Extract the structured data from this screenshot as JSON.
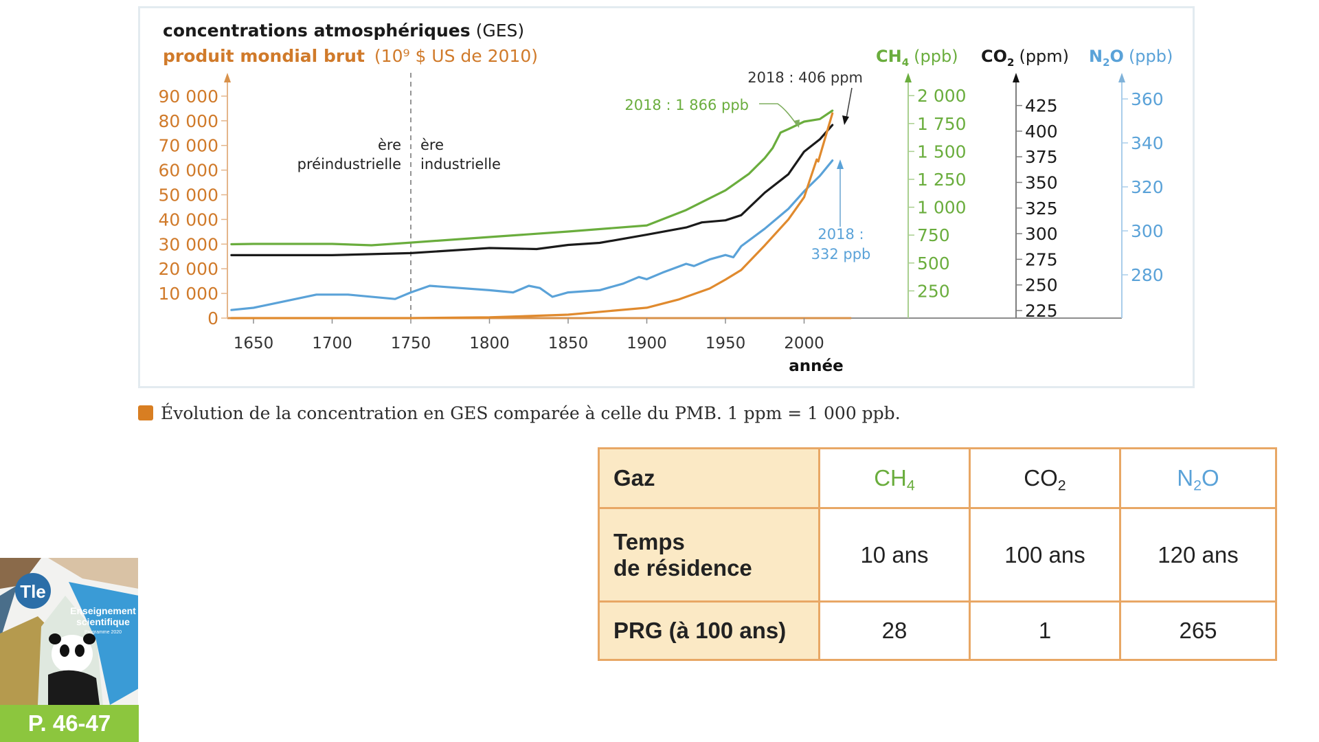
{
  "chart_data": {
    "type": "line",
    "title": "concentrations atmosphériques",
    "title_suffix": "(GES)",
    "subtitle": "produit mondial brut",
    "subtitle_unit": "(10⁹ $ US de 2010)",
    "xlabel": "année",
    "xlim": [
      1636,
      2030
    ],
    "x_ticks": [
      1650,
      1700,
      1750,
      1800,
      1850,
      1900,
      1950,
      2000
    ],
    "era_divider_year": 1750,
    "era_labels": {
      "left": [
        "ère",
        "préindustrielle"
      ],
      "right": [
        "ère",
        "industrielle"
      ]
    },
    "axes": {
      "gdp": {
        "label": "produit mondial brut",
        "ylim": [
          0,
          90000
        ],
        "ticks": [
          0,
          10000,
          20000,
          30000,
          40000,
          50000,
          60000,
          70000,
          80000,
          90000
        ],
        "tick_labels": [
          "0",
          "10 000",
          "20 000",
          "30 000",
          "40 000",
          "50 000",
          "60 000",
          "70 000",
          "80 000",
          "90 000"
        ],
        "color": "#d07a2a"
      },
      "ch4": {
        "label": "CH",
        "sub": "4",
        "unit": "(ppb)",
        "ylim": [
          0,
          2150
        ],
        "ticks": [
          250,
          500,
          750,
          1000,
          1250,
          1500,
          1750,
          2000
        ],
        "tick_labels": [
          "250",
          "500",
          "750",
          "1 000",
          "1 250",
          "1 500",
          "1 750",
          "2 000"
        ],
        "color": "#6aad3d"
      },
      "co2": {
        "label": "CO",
        "sub": "2",
        "unit": "(ppm)",
        "ylim": [
          200,
          460
        ],
        "ticks": [
          225,
          250,
          275,
          300,
          325,
          350,
          375,
          400,
          425
        ],
        "tick_labels": [
          "225",
          "250",
          "275",
          "300",
          "325",
          "350",
          "375",
          "400",
          "425"
        ],
        "color": "#1a1a1a"
      },
      "n2o": {
        "label": "N",
        "sub": "2",
        "label_end": "O",
        "unit": "(ppb)",
        "ylim": [
          260,
          370
        ],
        "ticks": [
          280,
          300,
          320,
          340,
          360
        ],
        "tick_labels": [
          "280",
          "300",
          "320",
          "340",
          "360"
        ],
        "color": "#5aa2d8"
      }
    },
    "series": [
      {
        "name": "CH4",
        "axis": "ch4",
        "color": "#6aad3d",
        "x": [
          1636,
          1650,
          1700,
          1725,
          1750,
          1800,
          1850,
          1900,
          1925,
          1950,
          1965,
          1975,
          1980,
          1985,
          1990,
          2000,
          2010,
          2018
        ],
        "y": [
          668,
          671,
          671,
          659,
          683,
          733,
          782,
          837,
          975,
          1151,
          1300,
          1441,
          1530,
          1669,
          1700,
          1767,
          1790,
          1866
        ]
      },
      {
        "name": "CO2",
        "axis": "co2",
        "color": "#1a1a1a",
        "x": [
          1636,
          1650,
          1700,
          1750,
          1800,
          1830,
          1850,
          1870,
          1900,
          1925,
          1935,
          1950,
          1960,
          1975,
          1990,
          2000,
          2010,
          2018
        ],
        "y": [
          279,
          279,
          279,
          281,
          286,
          285,
          289,
          291,
          299,
          306,
          311,
          313,
          318,
          340,
          358,
          380,
          392,
          406
        ]
      },
      {
        "name": "N2O",
        "axis": "n2o",
        "color": "#5aa2d8",
        "x": [
          1636,
          1650,
          1670,
          1690,
          1710,
          1740,
          1750,
          1762,
          1800,
          1815,
          1825,
          1832,
          1840,
          1850,
          1870,
          1885,
          1895,
          1900,
          1910,
          1925,
          1930,
          1940,
          1950,
          1955,
          1960,
          1975,
          1990,
          2000,
          2010,
          2018
        ],
        "y": [
          264,
          265,
          268,
          271,
          271,
          269,
          272,
          275,
          273,
          272,
          275,
          274,
          270,
          272,
          273,
          276,
          279,
          278,
          281,
          285,
          284,
          287,
          289,
          288,
          293,
          301,
          310,
          318,
          325,
          332
        ]
      },
      {
        "name": "PMB",
        "axis": "gdp",
        "color": "#e08a2e",
        "x": [
          1636,
          1750,
          1800,
          1850,
          1900,
          1920,
          1940,
          1950,
          1960,
          1975,
          1990,
          2000,
          2008,
          2009,
          2018
        ],
        "y": [
          0,
          0,
          300,
          1400,
          4200,
          7500,
          12000,
          15600,
          19500,
          29500,
          40000,
          49000,
          64300,
          63500,
          83000
        ]
      }
    ],
    "annotations": [
      {
        "text": "2018 : 1 866 ppb",
        "series": "CH4",
        "color": "#6aad3d"
      },
      {
        "text": "2018 : 406 ppm",
        "series": "CO2",
        "color": "#333333"
      },
      {
        "text_lines": [
          "2018 :",
          "332 ppb"
        ],
        "series": "N2O",
        "color": "#5aa2d8"
      }
    ]
  },
  "caption": "Évolution de la concentration en GES comparée à celle du PMB. 1 ppm = 1 000 ppb.",
  "table": {
    "row_headers": [
      "Gaz",
      "Temps",
      "de résidence",
      "PRG (à 100 ans)"
    ],
    "gases": [
      {
        "main": "CH",
        "sub": "4",
        "end": "",
        "color": "#6aad3d",
        "residence": "10 ans",
        "prg": "28"
      },
      {
        "main": "CO",
        "sub": "2",
        "end": "",
        "color": "#222222",
        "residence": "100 ans",
        "prg": "1"
      },
      {
        "main": "N",
        "sub": "2",
        "end": "O",
        "color": "#5aa2d8",
        "residence": "120 ans",
        "prg": "265"
      }
    ],
    "header_bg": "#fbe9c5",
    "border_color": "#e8a765"
  },
  "cover": {
    "badge": "Tle",
    "title_line1": "Enseignement",
    "title_line2": "scientifique",
    "subtitle": "Programme 2020",
    "pages": "P. 46-47"
  }
}
